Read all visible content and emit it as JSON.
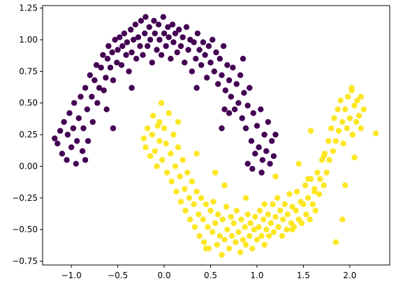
{
  "chart_data": {
    "type": "scatter",
    "title": "",
    "xlabel": "",
    "ylabel": "",
    "xlim": [
      -1.31,
      2.43
    ],
    "ylim": [
      -0.78,
      1.27
    ],
    "grid": false,
    "legend": "none",
    "x_ticks": [
      -1.0,
      -0.5,
      0.0,
      0.5,
      1.0,
      1.5,
      2.0
    ],
    "x_tick_labels": [
      "−1.0",
      "−0.5",
      "0.0",
      "0.5",
      "1.0",
      "1.5",
      "2.0"
    ],
    "y_ticks": [
      -0.75,
      -0.5,
      -0.25,
      0.0,
      0.25,
      0.5,
      0.75,
      1.0,
      1.25
    ],
    "y_tick_labels": [
      "−0.75",
      "−0.50",
      "−0.25",
      "0.00",
      "0.25",
      "0.50",
      "0.75",
      "1.00",
      "1.25"
    ],
    "series": [
      {
        "color": "#440154",
        "points": [
          [
            -1.18,
            0.22
          ],
          [
            -1.15,
            0.18
          ],
          [
            -1.12,
            0.28
          ],
          [
            -1.1,
            0.1
          ],
          [
            -1.08,
            0.35
          ],
          [
            -1.05,
            0.05
          ],
          [
            -1.04,
            0.25
          ],
          [
            -1.02,
            0.42
          ],
          [
            -1.0,
            0.15
          ],
          [
            -0.98,
            0.3
          ],
          [
            -0.97,
            0.5
          ],
          [
            -0.95,
            0.02
          ],
          [
            -0.94,
            0.2
          ],
          [
            -0.92,
            0.38
          ],
          [
            -0.9,
            0.55
          ],
          [
            -0.88,
            0.12
          ],
          [
            -0.87,
            0.3
          ],
          [
            -0.85,
            0.62
          ],
          [
            -0.83,
            0.45
          ],
          [
            -0.82,
            0.2
          ],
          [
            -0.8,
            0.72
          ],
          [
            -0.78,
            0.55
          ],
          [
            -0.77,
            0.35
          ],
          [
            -0.75,
            0.68
          ],
          [
            -0.73,
            0.8
          ],
          [
            -0.72,
            0.5
          ],
          [
            -0.7,
            0.62
          ],
          [
            -0.68,
            0.78
          ],
          [
            -0.66,
            0.88
          ],
          [
            -0.65,
            0.6
          ],
          [
            -0.63,
            0.7
          ],
          [
            -0.61,
            0.85
          ],
          [
            -0.6,
            0.95
          ],
          [
            -0.58,
            0.78
          ],
          [
            -0.56,
            0.9
          ],
          [
            -0.55,
            0.68
          ],
          [
            -0.53,
            1.0
          ],
          [
            -0.51,
            0.82
          ],
          [
            -0.5,
            0.92
          ],
          [
            -0.48,
            1.02
          ],
          [
            -0.46,
            0.8
          ],
          [
            -0.45,
            0.95
          ],
          [
            -0.43,
            1.05
          ],
          [
            -0.41,
            0.88
          ],
          [
            -0.4,
            0.98
          ],
          [
            -0.38,
            0.75
          ],
          [
            -0.36,
            1.08
          ],
          [
            -0.35,
            0.9
          ],
          [
            -0.33,
            1.0
          ],
          [
            -0.31,
            1.12
          ],
          [
            -0.3,
            0.85
          ],
          [
            -0.28,
            1.02
          ],
          [
            -0.26,
            0.95
          ],
          [
            -0.25,
            1.15
          ],
          [
            -0.23,
            0.88
          ],
          [
            -0.21,
            1.05
          ],
          [
            -0.2,
            1.18
          ],
          [
            -0.18,
            0.95
          ],
          [
            -0.16,
            1.1
          ],
          [
            -0.15,
            1.0
          ],
          [
            -0.13,
            0.82
          ],
          [
            -0.11,
            1.15
          ],
          [
            -0.1,
            1.05
          ],
          [
            -0.08,
            0.92
          ],
          [
            -0.06,
            1.12
          ],
          [
            -0.05,
            1.0
          ],
          [
            -0.03,
            0.88
          ],
          [
            -0.01,
            1.18
          ],
          [
            0.0,
            1.05
          ],
          [
            0.02,
            0.95
          ],
          [
            0.04,
            1.1
          ],
          [
            0.05,
            1.02
          ],
          [
            0.07,
            0.85
          ],
          [
            0.09,
            1.12
          ],
          [
            0.1,
            0.98
          ],
          [
            0.12,
            1.05
          ],
          [
            0.14,
            0.9
          ],
          [
            0.16,
            1.08
          ],
          [
            0.18,
            0.95
          ],
          [
            0.2,
            1.02
          ],
          [
            0.22,
            0.82
          ],
          [
            0.24,
            1.1
          ],
          [
            0.26,
            0.92
          ],
          [
            0.28,
            1.0
          ],
          [
            0.3,
            0.75
          ],
          [
            0.32,
            0.98
          ],
          [
            0.34,
            0.85
          ],
          [
            0.36,
            1.05
          ],
          [
            0.38,
            0.92
          ],
          [
            0.4,
            0.8
          ],
          [
            0.42,
            0.98
          ],
          [
            0.44,
            0.88
          ],
          [
            0.46,
            0.7
          ],
          [
            0.48,
            0.95
          ],
          [
            0.5,
            0.82
          ],
          [
            0.52,
            1.0
          ],
          [
            0.54,
            0.75
          ],
          [
            0.56,
            0.9
          ],
          [
            0.58,
            0.65
          ],
          [
            0.6,
            0.85
          ],
          [
            0.62,
            0.72
          ],
          [
            0.64,
            0.95
          ],
          [
            0.66,
            0.6
          ],
          [
            0.68,
            0.8
          ],
          [
            0.7,
            0.68
          ],
          [
            0.72,
            0.55
          ],
          [
            0.74,
            0.78
          ],
          [
            0.76,
            0.45
          ],
          [
            0.78,
            0.65
          ],
          [
            0.8,
            0.5
          ],
          [
            0.82,
            0.72
          ],
          [
            0.84,
            0.38
          ],
          [
            0.86,
            0.58
          ],
          [
            0.88,
            0.3
          ],
          [
            0.9,
            0.48
          ],
          [
            0.92,
            0.62
          ],
          [
            0.94,
            0.2
          ],
          [
            0.96,
            0.42
          ],
          [
            0.98,
            0.1
          ],
          [
            1.0,
            0.32
          ],
          [
            1.02,
            0.15
          ],
          [
            1.04,
            0.45
          ],
          [
            1.06,
            0.05
          ],
          [
            1.08,
            0.25
          ],
          [
            1.1,
            0.12
          ],
          [
            1.12,
            0.35
          ],
          [
            1.14,
            0.02
          ],
          [
            1.16,
            0.2
          ],
          [
            1.18,
            0.08
          ],
          [
            1.2,
            0.25
          ],
          [
            0.65,
            0.45
          ],
          [
            0.85,
            0.85
          ],
          [
            -0.35,
            0.62
          ],
          [
            0.35,
            0.62
          ],
          [
            -0.62,
            0.45
          ],
          [
            -0.85,
            0.05
          ],
          [
            -0.55,
            0.3
          ],
          [
            0.9,
            0.02
          ],
          [
            1.05,
            -0.05
          ],
          [
            0.95,
            -0.02
          ],
          [
            0.62,
            0.3
          ],
          [
            0.7,
            0.42
          ]
        ]
      },
      {
        "color": "#fde725",
        "points": [
          [
            -0.22,
            0.22
          ],
          [
            -0.2,
            0.15
          ],
          [
            -0.18,
            0.3
          ],
          [
            -0.15,
            0.08
          ],
          [
            -0.13,
            0.25
          ],
          [
            -0.12,
            0.4
          ],
          [
            -0.1,
            0.12
          ],
          [
            -0.08,
            0.0
          ],
          [
            -0.07,
            0.32
          ],
          [
            -0.05,
            0.2
          ],
          [
            -0.03,
            0.5
          ],
          [
            -0.02,
            0.05
          ],
          [
            0.0,
            0.3
          ],
          [
            0.02,
            0.18
          ],
          [
            0.03,
            -0.05
          ],
          [
            0.05,
            0.42
          ],
          [
            0.07,
            0.1
          ],
          [
            0.08,
            -0.12
          ],
          [
            0.1,
            0.25
          ],
          [
            0.12,
            0.0
          ],
          [
            0.13,
            -0.2
          ],
          [
            0.15,
            0.15
          ],
          [
            0.17,
            -0.08
          ],
          [
            0.18,
            -0.28
          ],
          [
            0.2,
            0.05
          ],
          [
            0.22,
            -0.18
          ],
          [
            0.23,
            -0.35
          ],
          [
            0.25,
            -0.05
          ],
          [
            0.27,
            -0.25
          ],
          [
            0.28,
            -0.42
          ],
          [
            0.3,
            -0.12
          ],
          [
            0.32,
            -0.3
          ],
          [
            0.33,
            -0.48
          ],
          [
            0.35,
            -0.2
          ],
          [
            0.37,
            -0.38
          ],
          [
            0.38,
            -0.55
          ],
          [
            0.4,
            -0.25
          ],
          [
            0.42,
            -0.42
          ],
          [
            0.43,
            -0.6
          ],
          [
            0.45,
            -0.3
          ],
          [
            0.47,
            -0.48
          ],
          [
            0.48,
            -0.65
          ],
          [
            0.5,
            -0.35
          ],
          [
            0.52,
            -0.52
          ],
          [
            0.53,
            -0.28
          ],
          [
            0.55,
            -0.45
          ],
          [
            0.57,
            -0.62
          ],
          [
            0.58,
            -0.38
          ],
          [
            0.6,
            -0.55
          ],
          [
            0.62,
            -0.7
          ],
          [
            0.63,
            -0.42
          ],
          [
            0.65,
            -0.58
          ],
          [
            0.67,
            -0.32
          ],
          [
            0.68,
            -0.5
          ],
          [
            0.7,
            -0.65
          ],
          [
            0.72,
            -0.4
          ],
          [
            0.73,
            -0.55
          ],
          [
            0.75,
            -0.45
          ],
          [
            0.77,
            -0.6
          ],
          [
            0.78,
            -0.35
          ],
          [
            0.8,
            -0.52
          ],
          [
            0.82,
            -0.68
          ],
          [
            0.83,
            -0.42
          ],
          [
            0.85,
            -0.58
          ],
          [
            0.87,
            -0.48
          ],
          [
            0.88,
            -0.62
          ],
          [
            0.9,
            -0.38
          ],
          [
            0.92,
            -0.55
          ],
          [
            0.93,
            -0.45
          ],
          [
            0.95,
            -0.65
          ],
          [
            0.97,
            -0.5
          ],
          [
            0.98,
            -0.4
          ],
          [
            1.0,
            -0.58
          ],
          [
            1.02,
            -0.48
          ],
          [
            1.03,
            -0.35
          ],
          [
            1.05,
            -0.55
          ],
          [
            1.07,
            -0.42
          ],
          [
            1.08,
            -0.62
          ],
          [
            1.1,
            -0.5
          ],
          [
            1.12,
            -0.38
          ],
          [
            1.13,
            -0.55
          ],
          [
            1.15,
            -0.45
          ],
          [
            1.17,
            -0.3
          ],
          [
            1.18,
            -0.52
          ],
          [
            1.2,
            -0.4
          ],
          [
            1.22,
            -0.25
          ],
          [
            1.23,
            -0.48
          ],
          [
            1.25,
            -0.35
          ],
          [
            1.27,
            -0.55
          ],
          [
            1.28,
            -0.42
          ],
          [
            1.3,
            -0.3
          ],
          [
            1.32,
            -0.5
          ],
          [
            1.33,
            -0.38
          ],
          [
            1.35,
            -0.22
          ],
          [
            1.37,
            -0.45
          ],
          [
            1.38,
            -0.32
          ],
          [
            1.4,
            -0.48
          ],
          [
            1.42,
            -0.35
          ],
          [
            1.43,
            -0.2
          ],
          [
            1.45,
            -0.42
          ],
          [
            1.47,
            -0.28
          ],
          [
            1.48,
            -0.45
          ],
          [
            1.5,
            -0.3
          ],
          [
            1.52,
            -0.15
          ],
          [
            1.53,
            -0.38
          ],
          [
            1.55,
            -0.25
          ],
          [
            1.57,
            -0.42
          ],
          [
            1.58,
            -0.1
          ],
          [
            1.6,
            -0.3
          ],
          [
            1.62,
            -0.18
          ],
          [
            1.63,
            -0.35
          ],
          [
            1.65,
            -0.05
          ],
          [
            1.67,
            -0.22
          ],
          [
            1.68,
            -0.1
          ],
          [
            1.7,
            0.05
          ],
          [
            1.72,
            -0.15
          ],
          [
            1.73,
            0.1
          ],
          [
            1.75,
            -0.05
          ],
          [
            1.77,
            0.2
          ],
          [
            1.78,
            0.05
          ],
          [
            1.8,
            0.3
          ],
          [
            1.82,
            0.12
          ],
          [
            1.83,
            0.38
          ],
          [
            1.85,
            0.2
          ],
          [
            1.87,
            0.45
          ],
          [
            1.88,
            0.28
          ],
          [
            1.9,
            0.52
          ],
          [
            1.92,
            0.35
          ],
          [
            1.93,
            0.18
          ],
          [
            1.95,
            0.45
          ],
          [
            1.97,
            0.3
          ],
          [
            1.98,
            0.55
          ],
          [
            2.0,
            0.38
          ],
          [
            2.02,
            0.6
          ],
          [
            2.03,
            0.25
          ],
          [
            2.05,
            0.48
          ],
          [
            2.07,
            0.35
          ],
          [
            2.08,
            0.52
          ],
          [
            2.1,
            0.4
          ],
          [
            2.12,
            0.3
          ],
          [
            2.15,
            0.45
          ],
          [
            2.28,
            0.26
          ],
          [
            2.05,
            0.07
          ],
          [
            2.12,
            0.55
          ],
          [
            1.58,
            0.28
          ],
          [
            1.95,
            -0.15
          ],
          [
            1.72,
            0.08
          ],
          [
            1.2,
            -0.08
          ],
          [
            0.65,
            -0.15
          ],
          [
            0.45,
            -0.65
          ],
          [
            1.85,
            -0.6
          ],
          [
            2.02,
            0.62
          ],
          [
            1.92,
            -0.42
          ],
          [
            1.45,
            0.02
          ],
          [
            1.62,
            -0.2
          ],
          [
            1.08,
            -0.3
          ],
          [
            0.35,
            0.1
          ],
          [
            0.55,
            -0.05
          ],
          [
            0.15,
            0.35
          ],
          [
            -0.05,
            0.35
          ],
          [
            0.88,
            -0.25
          ],
          [
            1.38,
            -0.5
          ],
          [
            1.55,
            -0.1
          ]
        ]
      }
    ]
  }
}
